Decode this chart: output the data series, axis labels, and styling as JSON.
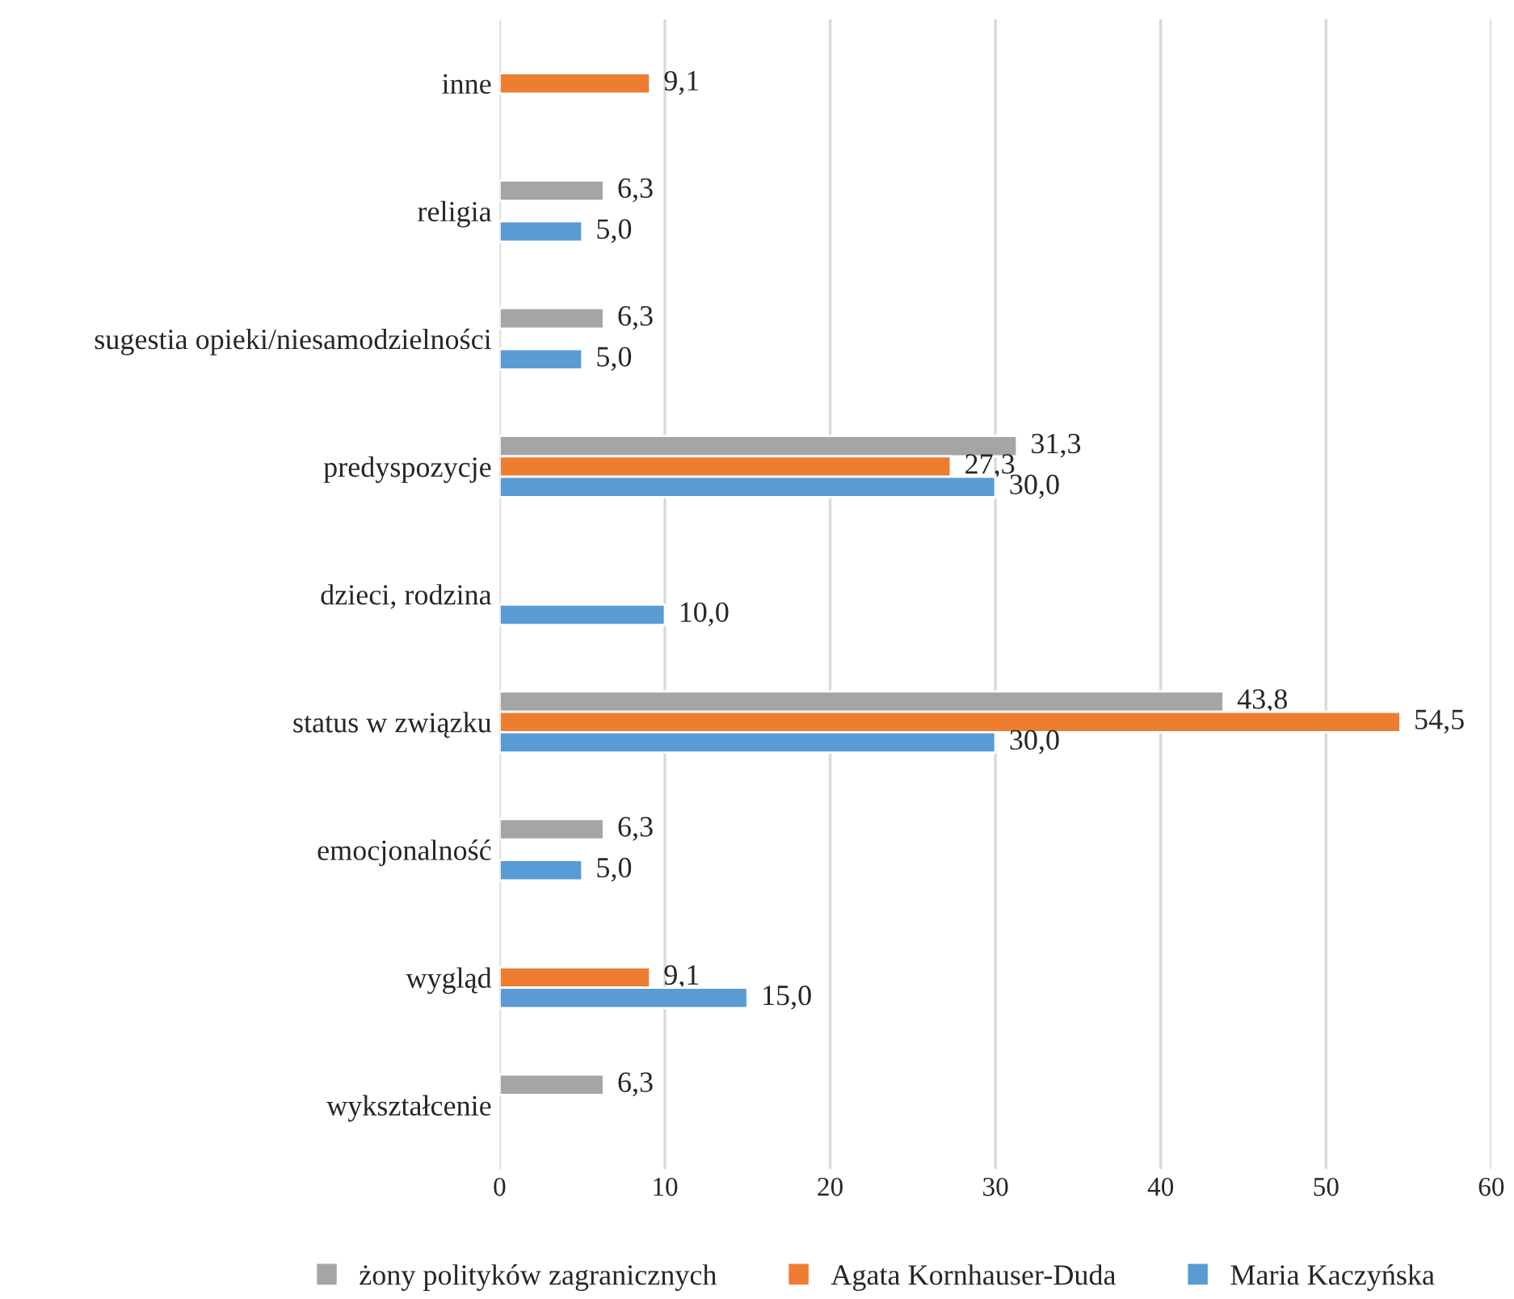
{
  "chart_data": {
    "type": "bar",
    "orientation": "horizontal",
    "categories": [
      "inne",
      "religia",
      "sugestia opieki/niesamodzielności",
      "predyspozycje",
      "dzieci, rodzina",
      "status w związku",
      "emocjonalność",
      "wygląd",
      "wykształcenie"
    ],
    "series": [
      {
        "name": "żony polityków zagranicznych",
        "color": "#a5a5a5",
        "values": [
          null,
          6.3,
          6.3,
          31.3,
          null,
          43.8,
          6.3,
          null,
          6.3
        ],
        "value_labels": [
          null,
          "6,3",
          "6,3",
          "31,3",
          null,
          "43,8",
          "6,3",
          null,
          "6,3"
        ]
      },
      {
        "name": "Agata Kornhauser-Duda",
        "color": "#ed7d31",
        "values": [
          9.1,
          null,
          null,
          27.3,
          null,
          54.5,
          null,
          9.1,
          null
        ],
        "value_labels": [
          "9,1",
          null,
          null,
          "27,3",
          null,
          "54,5",
          null,
          "9,1",
          null
        ]
      },
      {
        "name": "Maria Kaczyńska",
        "color": "#5b9bd5",
        "values": [
          null,
          5.0,
          5.0,
          30.0,
          10.0,
          30.0,
          5.0,
          15.0,
          null
        ],
        "value_labels": [
          null,
          "5,0",
          "5,0",
          "30,0",
          "10,0",
          "30,0",
          "5,0",
          "15,0",
          null
        ]
      }
    ],
    "xlim": [
      0,
      60
    ],
    "xticks": [
      0,
      10,
      20,
      30,
      40,
      50,
      60
    ],
    "grid": "x",
    "legend": "bottom"
  }
}
